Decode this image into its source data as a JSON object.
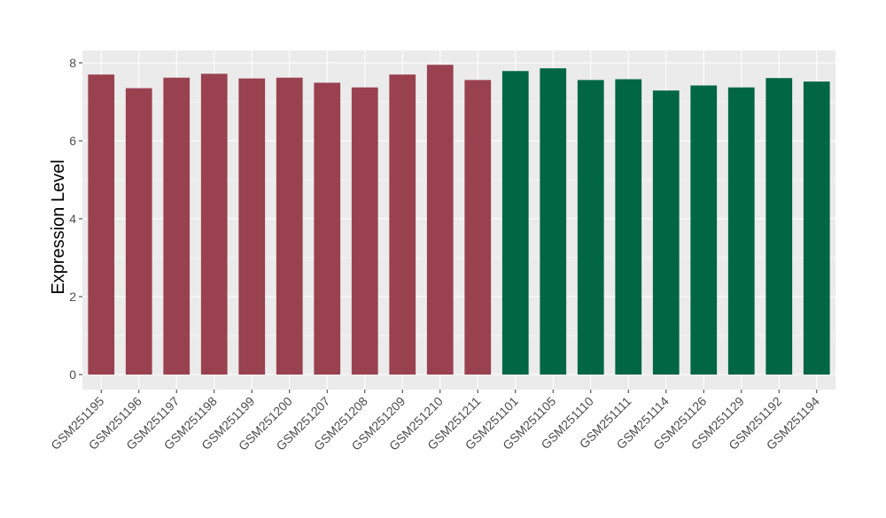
{
  "chart_data": {
    "type": "bar",
    "title": "",
    "xlabel": "",
    "ylabel": "Expression Level",
    "ylim": [
      0,
      8.1
    ],
    "yticks": [
      0,
      2,
      4,
      6,
      8
    ],
    "grid": true,
    "legend": "none",
    "background_color": "#EBEBEB",
    "grid_color": "#FFFFFF",
    "categories": [
      "GSM251195",
      "GSM251196",
      "GSM251197",
      "GSM251198",
      "GSM251199",
      "GSM251200",
      "GSM251207",
      "GSM251208",
      "GSM251209",
      "GSM251210",
      "GSM251211",
      "GSM251101",
      "GSM251105",
      "GSM251110",
      "GSM251111",
      "GSM251114",
      "GSM251126",
      "GSM251129",
      "GSM251192",
      "GSM251194"
    ],
    "values": [
      7.7,
      7.35,
      7.62,
      7.72,
      7.6,
      7.62,
      7.49,
      7.37,
      7.7,
      7.95,
      7.56,
      7.79,
      7.86,
      7.56,
      7.58,
      7.29,
      7.42,
      7.37,
      7.61,
      7.52
    ],
    "bar_colors": [
      "#9A4150",
      "#9A4150",
      "#9A4150",
      "#9A4150",
      "#9A4150",
      "#9A4150",
      "#9A4150",
      "#9A4150",
      "#9A4150",
      "#9A4150",
      "#9A4150",
      "#006644",
      "#006644",
      "#006644",
      "#006644",
      "#006644",
      "#006644",
      "#006644",
      "#006644",
      "#006644"
    ]
  }
}
